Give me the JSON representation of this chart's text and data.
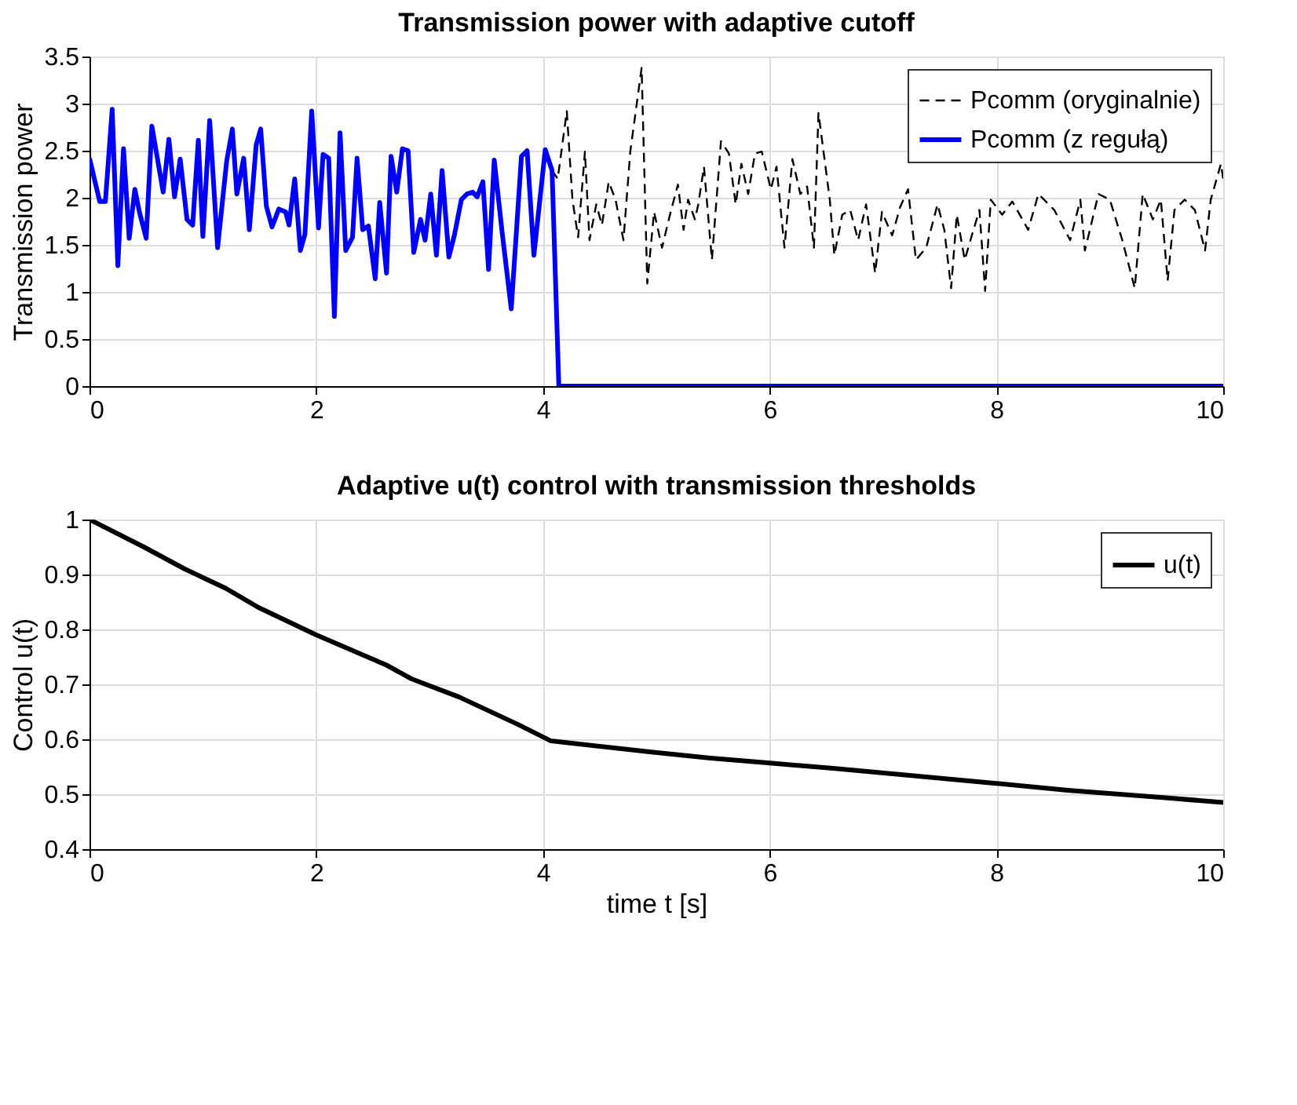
{
  "chart_data": [
    {
      "type": "line",
      "title": "Transmission power with adaptive cutoff",
      "ylabel": "Transmission power",
      "xlim": [
        0,
        10
      ],
      "xticks": [
        0,
        2,
        4,
        6,
        8,
        10
      ],
      "ylim": [
        0,
        3.5
      ],
      "yticks": [
        0,
        0.5,
        1,
        1.5,
        2,
        2.5,
        3,
        3.5
      ],
      "grid": true,
      "legend": "top right",
      "series": [
        {
          "name": "Pcomm (oryginalnie)",
          "color": "#000000",
          "line_style": "dashed",
          "x": [
            4.08,
            4.13,
            4.21,
            4.26,
            4.31,
            4.37,
            4.41,
            4.47,
            4.52,
            4.58,
            4.64,
            4.71,
            4.77,
            4.87,
            4.92,
            4.98,
            5.05,
            5.12,
            5.19,
            5.24,
            5.28,
            5.34,
            5.37,
            5.42,
            5.49,
            5.57,
            5.64,
            5.7,
            5.75,
            5.81,
            5.87,
            5.93,
            6.01,
            6.06,
            6.13,
            6.2,
            6.27,
            6.33,
            6.39,
            6.43,
            6.53,
            6.57,
            6.64,
            6.71,
            6.78,
            6.85,
            6.93,
            6.99,
            7.08,
            7.15,
            7.22,
            7.29,
            7.38,
            7.48,
            7.54,
            7.6,
            7.65,
            7.72,
            7.79,
            7.85,
            7.9,
            7.95,
            8.05,
            8.14,
            8.28,
            8.37,
            8.51,
            8.65,
            8.74,
            8.78,
            8.9,
            9.0,
            9.11,
            9.22,
            9.29,
            9.38,
            9.45,
            9.51,
            9.57,
            9.66,
            9.75,
            9.84,
            9.89,
            9.98,
            10.0
          ],
          "values": [
            2.29,
            2.2,
            2.92,
            1.98,
            1.58,
            2.49,
            1.55,
            1.93,
            1.71,
            2.17,
            1.98,
            1.55,
            2.49,
            3.38,
            1.09,
            1.85,
            1.47,
            1.82,
            2.14,
            1.66,
            1.98,
            1.77,
            1.93,
            2.33,
            1.34,
            2.6,
            2.47,
            1.93,
            2.36,
            2.04,
            2.47,
            2.49,
            2.09,
            2.33,
            1.47,
            2.41,
            2.04,
            2.12,
            1.47,
            2.9,
            1.98,
            1.39,
            1.82,
            1.87,
            1.55,
            1.93,
            1.2,
            1.85,
            1.6,
            1.9,
            2.09,
            1.34,
            1.47,
            1.93,
            1.66,
            1.04,
            1.82,
            1.34,
            1.63,
            1.87,
            1.01,
            1.98,
            1.82,
            1.96,
            1.66,
            2.04,
            1.87,
            1.55,
            1.98,
            1.44,
            2.04,
            1.98,
            1.55,
            1.04,
            2.04,
            1.77,
            1.98,
            1.12,
            1.87,
            1.98,
            1.87,
            1.44,
            1.98,
            2.36,
            2.2
          ]
        },
        {
          "name": "Pcomm (z regułą)",
          "color": "#0000ff",
          "line_style": "solid",
          "x": [
            0,
            0.09,
            0.14,
            0.2,
            0.25,
            0.3,
            0.35,
            0.4,
            0.44,
            0.5,
            0.55,
            0.61,
            0.65,
            0.7,
            0.75,
            0.8,
            0.86,
            0.91,
            0.96,
            1.0,
            1.06,
            1.13,
            1.21,
            1.26,
            1.3,
            1.36,
            1.41,
            1.47,
            1.51,
            1.56,
            1.61,
            1.67,
            1.73,
            1.76,
            1.81,
            1.86,
            1.9,
            1.96,
            2.02,
            2.06,
            2.11,
            2.16,
            2.21,
            2.26,
            2.32,
            2.36,
            2.41,
            2.46,
            2.52,
            2.56,
            2.62,
            2.66,
            2.71,
            2.76,
            2.81,
            2.86,
            2.92,
            2.96,
            3.01,
            3.06,
            3.11,
            3.17,
            3.22,
            3.28,
            3.33,
            3.38,
            3.42,
            3.47,
            3.52,
            3.57,
            3.64,
            3.72,
            3.81,
            3.86,
            3.92,
            4.02,
            4.08,
            4.14,
            10.0
          ],
          "values": [
            2.42,
            1.96,
            1.96,
            2.94,
            1.28,
            2.52,
            1.57,
            2.09,
            1.85,
            1.57,
            2.76,
            2.34,
            2.06,
            2.62,
            2.01,
            2.41,
            1.77,
            1.71,
            2.61,
            1.59,
            2.82,
            1.47,
            2.39,
            2.73,
            2.04,
            2.42,
            1.66,
            2.56,
            2.73,
            1.91,
            1.69,
            1.88,
            1.85,
            1.71,
            2.2,
            1.44,
            1.61,
            2.92,
            1.68,
            2.46,
            2.42,
            0.74,
            2.69,
            1.44,
            1.58,
            2.42,
            1.66,
            1.7,
            1.14,
            1.95,
            1.2,
            2.44,
            2.06,
            2.52,
            2.5,
            1.42,
            1.77,
            1.55,
            2.04,
            1.39,
            2.29,
            1.37,
            1.61,
            1.98,
            2.04,
            2.06,
            2.01,
            2.17,
            1.24,
            2.4,
            1.63,
            0.82,
            2.44,
            2.5,
            1.39,
            2.51,
            2.29,
            0,
            0
          ]
        }
      ]
    },
    {
      "type": "line",
      "title": "Adaptive u(t) control with transmission thresholds",
      "xlabel": "time t [s]",
      "ylabel": "Control u(t)",
      "xlim": [
        0,
        10
      ],
      "xticks": [
        0,
        2,
        4,
        6,
        8,
        10
      ],
      "ylim": [
        0.4,
        1
      ],
      "yticks": [
        0.4,
        0.5,
        0.6,
        0.7,
        0.8,
        0.9,
        1
      ],
      "grid": true,
      "legend": "top right",
      "series": [
        {
          "name": "u(t)",
          "color": "#000000",
          "line_style": "solid",
          "x": [
            0,
            0.48,
            0.84,
            1.2,
            1.49,
            2.0,
            2.62,
            2.84,
            3.26,
            3.78,
            4.07,
            4.94,
            5.46,
            5.98,
            6.56,
            7.14,
            7.98,
            8.63,
            9.47,
            10.0
          ],
          "values": [
            1.0,
            0.95,
            0.91,
            0.875,
            0.84,
            0.79,
            0.735,
            0.71,
            0.677,
            0.627,
            0.597,
            0.577,
            0.566,
            0.557,
            0.547,
            0.536,
            0.52,
            0.507,
            0.494,
            0.485
          ]
        }
      ]
    }
  ]
}
